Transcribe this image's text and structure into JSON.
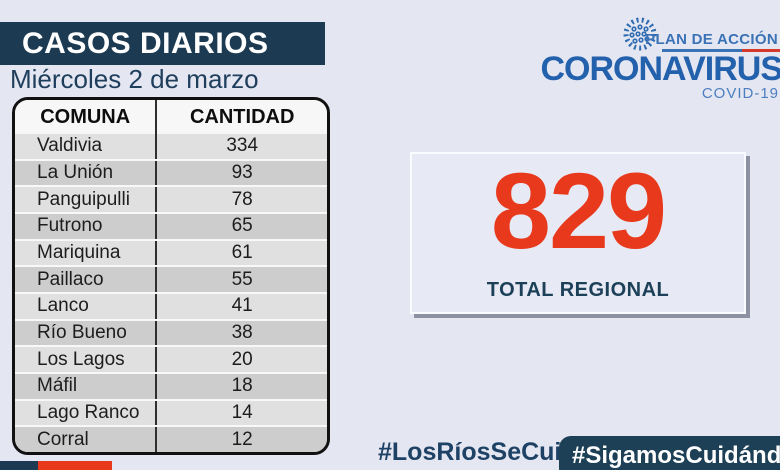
{
  "colors": {
    "background": "#e4e6f1",
    "navy": "#1c3a52",
    "red": "#e8391c",
    "logo_blue": "#2361ad",
    "table_border": "#111111"
  },
  "header": {
    "title": "CASOS DIARIOS",
    "date": "Miércoles 2 de marzo"
  },
  "logo": {
    "plan_label": "PLAN DE ACCIÓN",
    "brand": "CORONAVIRUS",
    "sub_label": "COVID-19"
  },
  "table": {
    "columns": [
      "COMUNA",
      "CANTIDAD"
    ],
    "rows": [
      {
        "comuna": "Valdivia",
        "cantidad": "334"
      },
      {
        "comuna": "La Unión",
        "cantidad": "93"
      },
      {
        "comuna": "Panguipulli",
        "cantidad": "78"
      },
      {
        "comuna": "Futrono",
        "cantidad": "65"
      },
      {
        "comuna": "Mariquina",
        "cantidad": "61"
      },
      {
        "comuna": "Paillaco",
        "cantidad": "55"
      },
      {
        "comuna": "Lanco",
        "cantidad": "41"
      },
      {
        "comuna": "Río Bueno",
        "cantidad": "38"
      },
      {
        "comuna": "Los Lagos",
        "cantidad": "20"
      },
      {
        "comuna": "Máfil",
        "cantidad": "18"
      },
      {
        "comuna": "Lago Ranco",
        "cantidad": "14"
      },
      {
        "comuna": "Corral",
        "cantidad": "12"
      }
    ]
  },
  "total_card": {
    "value": "829",
    "label": "TOTAL REGIONAL"
  },
  "footer": {
    "hashtag_plain": "#LosRíosSeCuida",
    "hashtag_badge": "#SigamosCuidándonos"
  },
  "chart_data": {
    "type": "table",
    "title": "CASOS DIARIOS",
    "subtitle": "Miércoles 2 de marzo",
    "columns": [
      "COMUNA",
      "CANTIDAD"
    ],
    "categories": [
      "Valdivia",
      "La Unión",
      "Panguipulli",
      "Futrono",
      "Mariquina",
      "Paillaco",
      "Lanco",
      "Río Bueno",
      "Los Lagos",
      "Máfil",
      "Lago Ranco",
      "Corral"
    ],
    "values": [
      334,
      93,
      78,
      65,
      61,
      55,
      41,
      38,
      20,
      18,
      14,
      12
    ],
    "total": 829,
    "total_label": "TOTAL REGIONAL"
  }
}
